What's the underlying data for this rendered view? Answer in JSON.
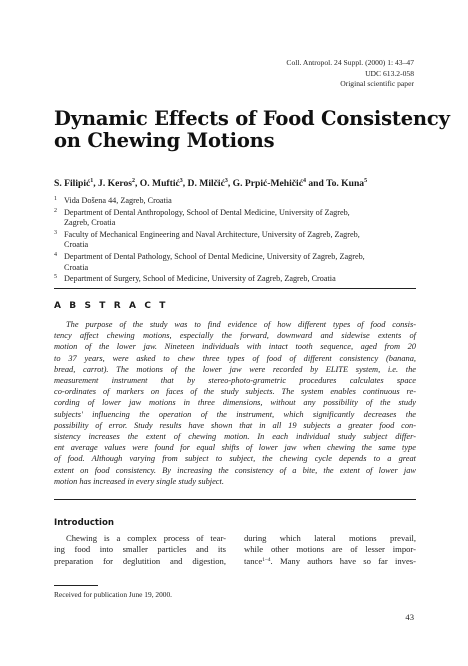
{
  "journal": {
    "citation": "Coll. Antropol. 24 Suppl. (2000) 1: 43–47",
    "udc": "UDC 613.2-058",
    "paper_type": "Original scientific paper"
  },
  "title": {
    "line1": "Dynamic Effects of Food Consistency",
    "line2": "on Chewing Motions"
  },
  "authors": [
    {
      "name": "S. Filipić",
      "aff": "1"
    },
    {
      "name": "J. Keros",
      "aff": "2"
    },
    {
      "name": "O. Muftić",
      "aff": "3"
    },
    {
      "name": "D. Milčić",
      "aff": "3"
    },
    {
      "name": "G. Prpić-Mehičić",
      "aff": "4"
    },
    {
      "name": "To. Kuna",
      "aff": "5"
    }
  ],
  "affiliations": [
    {
      "num": "1",
      "lines": [
        "Vida Došena 44, Zagreb, Croatia"
      ]
    },
    {
      "num": "2",
      "lines": [
        "Department of Dental Anthropology, School of Dental Medicine, University of Zagreb,",
        "Zagreb, Croatia"
      ]
    },
    {
      "num": "3",
      "lines": [
        "Faculty of Mechanical Engineering and Naval Architecture, University of Zagreb, Zagreb,",
        "Croatia"
      ]
    },
    {
      "num": "4",
      "lines": [
        "Department of Dental Pathology, School of Dental Medicine, University of Zagreb, Zagreb,",
        "Croatia"
      ]
    },
    {
      "num": "5",
      "lines": [
        "Department of Surgery, School of Medicine, University of Zagreb, Zagreb, Croatia"
      ]
    }
  ],
  "abstract": {
    "heading": "A B S T R A C T",
    "lines": [
      "The purpose of the study was to find evidence of how different types of food consis-",
      "tency affect chewing motions, especially the forward, downward and sidewise extents of",
      "motion of the lower jaw. Nineteen individuals with intact tooth sequence, aged from 20",
      "to 37 years, were asked to chew three types of food of different consistency (banana,",
      "bread, carrot). The motions of the lower jaw were recorded by ELITE system, i.e. the",
      "measurement instrument that by stereo-photo-grametric procedures calculates space",
      "co-ordinates of markers on faces of the study subjects. The system enables continuous re-",
      "cording of lower jaw motions in three dimensions, without any possibility of the study",
      "subjects' influencing the operation of the instrument, which significantly decreases the",
      "possibility of error. Study results have shown that in all 19 subjects a greater food con-",
      "sistency increases the extent of chewing motion. In each individual study subject differ-",
      "ent average values were found for equal shifts of lower jaw when chewing the same type",
      "of food. Although varying from subject to subject, the chewing cycle depends to a great",
      "extent on food consistency. By increasing the consistency of a bite, the extent of lower jaw",
      "motion has increased in every single study subject."
    ]
  },
  "introduction": {
    "heading": "Introduction",
    "left_lines": [
      "Chewing is a complex process of tear-",
      "ing food into smaller particles and its",
      "preparation for deglutition and digestion,"
    ],
    "right_lines": [
      "during which lateral motions prevail,",
      "while other motions are of lesser impor-",
      "tance",
      "1–4",
      ". Many authors have so far inves-"
    ]
  },
  "footnote": "Received for publication June 19, 2000.",
  "page_number": "43"
}
